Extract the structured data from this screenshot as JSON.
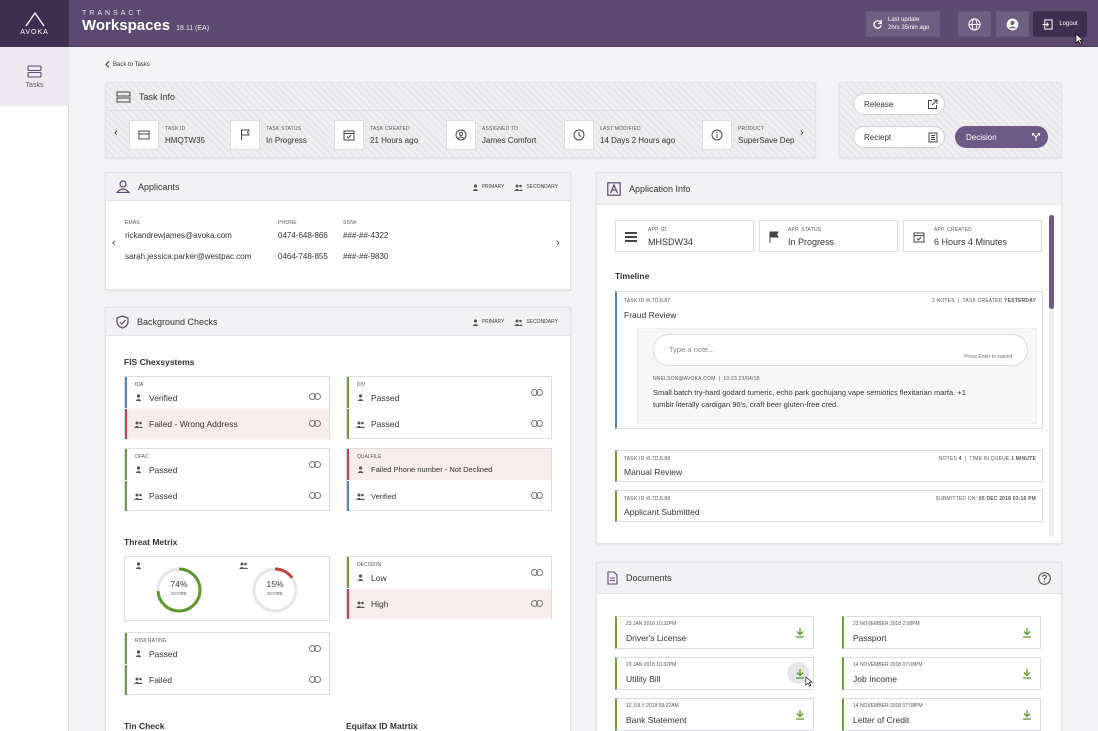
{
  "header": {
    "brand": "AVOKA",
    "product_small": "TRANSACT",
    "product": "Workspaces",
    "version": "18.11 (EA)",
    "last_update_label": "Last update",
    "last_update_value": "2hrs 35min ago",
    "logout_label": "Logout"
  },
  "sidebar": {
    "tasks_label": "Tasks"
  },
  "back_label": "Back to Tasks",
  "task_info": {
    "title": "Task Info",
    "items": [
      {
        "label": "Task ID",
        "value": "HMQTW35",
        "icon": "card-icon"
      },
      {
        "label": "Task Status",
        "value": "In Progress",
        "icon": "flag-icon"
      },
      {
        "label": "Task Created",
        "value": "21 Hours ago",
        "icon": "calendar-icon"
      },
      {
        "label": "Assigned To",
        "value": "James Comfort",
        "icon": "user-circle-icon"
      },
      {
        "label": "Last Modified",
        "value": "14 Days 2 Hours ago",
        "icon": "clock-icon"
      },
      {
        "label": "Product",
        "value": "SuperSave Dep",
        "icon": "info-icon"
      }
    ]
  },
  "actions": {
    "release": "Release",
    "receipt": "Reciept",
    "decision": "Decision"
  },
  "applicants": {
    "title": "Applicants",
    "legend_primary": "PRIMARY",
    "legend_secondary": "SECONDARY",
    "col_email": "EMAIL",
    "col_phone": "PHONE",
    "col_ssn": "SSN#",
    "rows": [
      {
        "email": "rickandrewjames@avoka.com",
        "phone": "0474-648-866",
        "ssn": "###-##-4322"
      },
      {
        "email": "sarah.jessica.parker@westpac.com",
        "phone": "0464-748-855",
        "ssn": "###-##-9830"
      }
    ]
  },
  "background": {
    "title": "Background Checks",
    "legend_primary": "PRIMARY",
    "legend_secondary": "SECONDARY",
    "fis_title": "FIS Chexsystems",
    "ida_label": "IDA",
    "ida_primary": "Verified",
    "ida_secondary": "Failed - Wrong Address",
    "idv_label": "IDV",
    "idv_primary": "Passed",
    "idv_secondary": "Passed",
    "ofac_label": "OFAC",
    "ofac_primary": "Passed",
    "ofac_secondary": "Passed",
    "qual_label": "QUALFILE",
    "qual_primary": "Failed Phone number - Not Declined",
    "qual_secondary": "Verified",
    "threat_title": "Threat Metrix",
    "score1": "74%",
    "score1_value": 0.74,
    "score2": "15%",
    "score2_value": 0.15,
    "score_label": "SCORE",
    "decision_label": "DECISION",
    "decision_primary": "Low",
    "decision_secondary": "High",
    "risk_label": "RISK RATING",
    "risk_primary": "Passed",
    "risk_secondary": "Failed",
    "tin_title": "Tin Check",
    "equifax_title": "Equifax ID Matrtix"
  },
  "app_info": {
    "title": "Application Info",
    "app_id_label": "APP. ID",
    "app_id": "MHSDW34",
    "status_label": "APP. STATUS",
    "status": "In Progress",
    "created_label": "APP. CREATED",
    "created": "6 Hours 4 Minutes",
    "timeline_title": "Timeline",
    "tl1_id": "TASK ID #LTDJL87",
    "tl1_meta_a": "2 NOTES",
    "tl1_meta_b": "TASK CREATED",
    "tl1_meta_c": "YESTERDAY",
    "tl1_name": "Fraud Review",
    "note_placeholder": "Type a note...",
    "note_hint": "Press Enter to submit",
    "note_author": "NNELSON@AVOKA.COM",
    "note_time": "10:23 23/04/18",
    "note_text_1": "Small batch try-hard godard tumeric, echo park gochujang vape semiotics flexitarian marfa. +1",
    "note_text_2": "tumblr literally cardigan 90's, craft beer gluten-free cred.",
    "tl2_id": "TASK ID #LTDJL88",
    "tl2_meta_a": "NOTES",
    "tl2_meta_a_val": "4",
    "tl2_meta_b": "TIME IN QUEUE",
    "tl2_meta_b_val": "1 MINUTE",
    "tl2_name": "Manual Review",
    "tl3_id": "TASK ID #LTDJL88",
    "tl3_meta": "SUBMITTED ON:",
    "tl3_meta_val": "05 DEC 2018 03:16 PM",
    "tl3_name": "Applicant Submitted"
  },
  "documents": {
    "title": "Documents",
    "items": [
      {
        "date": "23 JAN 2018  10:32PM",
        "name": "Driver's License"
      },
      {
        "date": "22 NOVEMBER 2018  2:08PM",
        "name": "Passport"
      },
      {
        "date": "23 JAN 2018  10:32PM",
        "name": "Utility Bill"
      },
      {
        "date": "14 NOVEMBER 2018  07:08PM",
        "name": "Job Income"
      },
      {
        "date": "12 JULY 2018  09:22AM",
        "name": "Bank Statement"
      },
      {
        "date": "14 NOVEMBER 2018  07:08PM",
        "name": "Letter of Credit"
      }
    ]
  },
  "colors": {
    "brand": "#5c4870",
    "success": "#6a9f3a",
    "error": "#c24444",
    "info": "#4f86c4"
  }
}
